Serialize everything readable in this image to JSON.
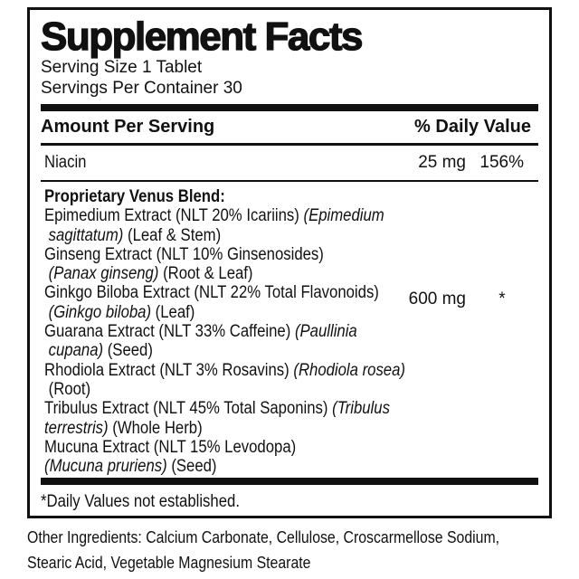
{
  "colors": {
    "ink": "#111111",
    "bg": "#ffffff"
  },
  "label": {
    "title": "Supplement Facts",
    "serving_size": "Serving Size 1 Tablet",
    "servings_per_container": "Servings Per Container 30",
    "columns": {
      "amount": "Amount Per Serving",
      "daily_value": "% Daily Value"
    },
    "nutrients": [
      {
        "name": "Niacin",
        "amount": "25 mg",
        "daily_value": "156%"
      }
    ],
    "blend": {
      "title": "Proprietary Venus Blend:",
      "amount": "600 mg",
      "daily_value": "*",
      "lines": [
        [
          {
            "t": "Epimedium Extract (NLT 20% Icariins) "
          },
          {
            "t": "(Epimedium",
            "i": true
          }
        ],
        [
          {
            "t": " "
          },
          {
            "t": "sagittatum)",
            "i": true
          },
          {
            "t": " (Leaf & Stem)"
          }
        ],
        [
          {
            "t": "Ginseng Extract (NLT 10% Ginsenosides)"
          }
        ],
        [
          {
            "t": " "
          },
          {
            "t": "(Panax ginseng)",
            "i": true
          },
          {
            "t": " (Root & Leaf)"
          }
        ],
        [
          {
            "t": "Ginkgo Biloba Extract (NLT 22% Total Flavonoids)"
          }
        ],
        [
          {
            "t": " "
          },
          {
            "t": "(Ginkgo biloba)",
            "i": true
          },
          {
            "t": " (Leaf)"
          }
        ],
        [
          {
            "t": "Guarana Extract (NLT 33% Caffeine) "
          },
          {
            "t": "(Paullinia",
            "i": true
          }
        ],
        [
          {
            "t": " "
          },
          {
            "t": "cupana)",
            "i": true
          },
          {
            "t": " (Seed)"
          }
        ],
        [
          {
            "t": "Rhodiola Extract (NLT 3% Rosavins) "
          },
          {
            "t": "(Rhodiola rosea)",
            "i": true
          }
        ],
        [
          {
            "t": " (Root)"
          }
        ],
        [
          {
            "t": "Tribulus Extract (NLT 45% Total Saponins) "
          },
          {
            "t": "(Tribulus",
            "i": true
          }
        ],
        [
          {
            "t": "terrestris)",
            "i": true
          },
          {
            "t": " (Whole Herb)"
          }
        ],
        [
          {
            "t": "Mucuna Extract (NLT 15% Levodopa)"
          }
        ],
        [
          {
            "t": "(Mucuna pruriens)",
            "i": true
          },
          {
            "t": " (Seed)"
          }
        ]
      ]
    },
    "footnote": "*Daily Values not established.",
    "other_ingredients_lines": [
      "Other Ingredients: Calcium Carbonate, Cellulose, Croscarmellose Sodium,",
      "Stearic Acid, Vegetable Magnesium Stearate"
    ]
  }
}
